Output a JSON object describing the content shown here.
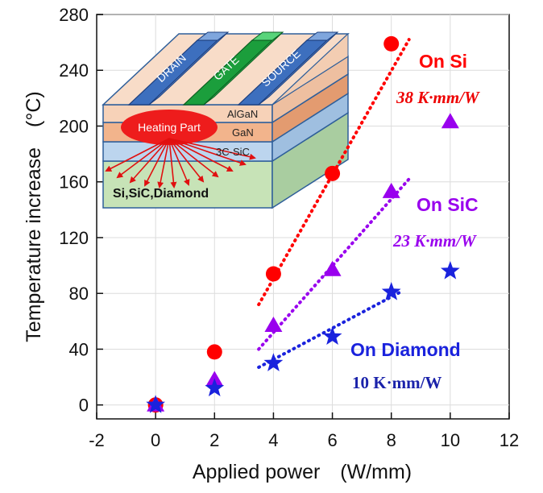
{
  "chart_data": {
    "type": "scatter",
    "xlabel": "Applied power　(W/mm)",
    "ylabel": "Temperature increase　(°C)",
    "xlim": [
      -2,
      12
    ],
    "ylim": [
      -10,
      280
    ],
    "x_ticks": [
      -2,
      0,
      2,
      4,
      6,
      8,
      10,
      12
    ],
    "y_ticks": [
      0,
      40,
      80,
      120,
      160,
      200,
      240,
      280
    ],
    "series": [
      {
        "name": "On Si",
        "marker": "circle",
        "color": "#ff0000",
        "points": [
          {
            "x": 0,
            "y": 0
          },
          {
            "x": 2,
            "y": 38
          },
          {
            "x": 4,
            "y": 94
          },
          {
            "x": 6,
            "y": 166
          },
          {
            "x": 8,
            "y": 259
          }
        ],
        "fit": [
          {
            "x": 3.5,
            "y": 72
          },
          {
            "x": 8.6,
            "y": 262
          }
        ],
        "annotation": "On Si",
        "resistance": "38 K·mm/W"
      },
      {
        "name": "On SiC",
        "marker": "triangle",
        "color": "#9900ee",
        "points": [
          {
            "x": 0,
            "y": 0
          },
          {
            "x": 2,
            "y": 18
          },
          {
            "x": 4,
            "y": 57
          },
          {
            "x": 6,
            "y": 97
          },
          {
            "x": 8,
            "y": 153
          },
          {
            "x": 10,
            "y": 203
          }
        ],
        "fit": [
          {
            "x": 3.5,
            "y": 40
          },
          {
            "x": 8.6,
            "y": 162
          }
        ],
        "annotation": "On SiC",
        "resistance": "23 K·mm/W"
      },
      {
        "name": "On Diamond",
        "marker": "star",
        "color": "#1a22dd",
        "points": [
          {
            "x": 0,
            "y": 0
          },
          {
            "x": 2,
            "y": 12
          },
          {
            "x": 4,
            "y": 30
          },
          {
            "x": 6,
            "y": 49
          },
          {
            "x": 8,
            "y": 81
          },
          {
            "x": 10,
            "y": 96
          }
        ],
        "fit": [
          {
            "x": 3.5,
            "y": 27
          },
          {
            "x": 8.4,
            "y": 82
          }
        ],
        "annotation": "On Diamond",
        "resistance": "10 K·mm/W"
      }
    ],
    "inset": {
      "electrodes": [
        "DRAIN",
        "GATE",
        "SOURCE"
      ],
      "layers": [
        "AlGaN",
        "GaN",
        "3C-SiC",
        "Si,SiC,Diamond"
      ],
      "heat_label": "Heating Part"
    }
  }
}
